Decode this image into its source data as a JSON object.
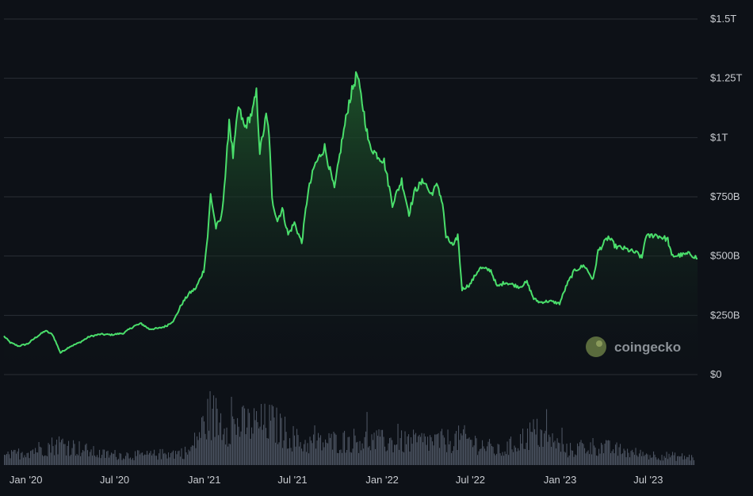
{
  "chart_data": {
    "type": "area",
    "title": "",
    "xlabel": "",
    "ylabel": "",
    "x_range": [
      "2019-11-17",
      "2023-10-10"
    ],
    "ylim": [
      0,
      1500
    ],
    "y_unit": "billion USD",
    "y_ticks": [
      {
        "value": 1500,
        "label": "$1.5T"
      },
      {
        "value": 1250,
        "label": "$1.25T"
      },
      {
        "value": 1000,
        "label": "$1T"
      },
      {
        "value": 750,
        "label": "$750B"
      },
      {
        "value": 500,
        "label": "$500B"
      },
      {
        "value": 250,
        "label": "$250B"
      },
      {
        "value": 0,
        "label": "$0"
      }
    ],
    "x_ticks": [
      {
        "date": "2020-01-01",
        "label": "Jan '20"
      },
      {
        "date": "2020-07-01",
        "label": "Jul '20"
      },
      {
        "date": "2021-01-01",
        "label": "Jan '21"
      },
      {
        "date": "2021-07-01",
        "label": "Jul '21"
      },
      {
        "date": "2022-01-01",
        "label": "Jan '22"
      },
      {
        "date": "2022-07-01",
        "label": "Jul '22"
      },
      {
        "date": "2023-01-01",
        "label": "Jan '23"
      },
      {
        "date": "2023-07-01",
        "label": "Jul '23"
      }
    ],
    "grid": true,
    "series": [
      {
        "color": "#4ade6b",
        "points": [
          [
            "2019-11-17",
            162
          ],
          [
            "2019-11-30",
            135
          ],
          [
            "2019-12-17",
            120
          ],
          [
            "2020-01-05",
            130
          ],
          [
            "2020-01-20",
            155
          ],
          [
            "2020-02-10",
            185
          ],
          [
            "2020-02-25",
            168
          ],
          [
            "2020-03-12",
            92
          ],
          [
            "2020-03-31",
            118
          ],
          [
            "2020-04-20",
            135
          ],
          [
            "2020-05-10",
            160
          ],
          [
            "2020-06-01",
            170
          ],
          [
            "2020-06-25",
            168
          ],
          [
            "2020-07-20",
            175
          ],
          [
            "2020-08-10",
            205
          ],
          [
            "2020-08-25",
            215
          ],
          [
            "2020-09-10",
            192
          ],
          [
            "2020-09-30",
            195
          ],
          [
            "2020-10-15",
            205
          ],
          [
            "2020-10-31",
            230
          ],
          [
            "2020-11-15",
            295
          ],
          [
            "2020-11-30",
            340
          ],
          [
            "2020-12-15",
            365
          ],
          [
            "2020-12-31",
            440
          ],
          [
            "2021-01-08",
            585
          ],
          [
            "2021-01-14",
            760
          ],
          [
            "2021-01-25",
            620
          ],
          [
            "2021-02-05",
            660
          ],
          [
            "2021-02-15",
            880
          ],
          [
            "2021-02-21",
            1080
          ],
          [
            "2021-03-01",
            920
          ],
          [
            "2021-03-12",
            1130
          ],
          [
            "2021-03-25",
            1040
          ],
          [
            "2021-04-10",
            1110
          ],
          [
            "2021-04-18",
            1190
          ],
          [
            "2021-04-25",
            940
          ],
          [
            "2021-05-08",
            1090
          ],
          [
            "2021-05-14",
            1020
          ],
          [
            "2021-05-20",
            740
          ],
          [
            "2021-05-31",
            650
          ],
          [
            "2021-06-10",
            700
          ],
          [
            "2021-06-22",
            590
          ],
          [
            "2021-07-05",
            640
          ],
          [
            "2021-07-20",
            555
          ],
          [
            "2021-08-01",
            760
          ],
          [
            "2021-08-15",
            880
          ],
          [
            "2021-09-05",
            960
          ],
          [
            "2021-09-25",
            780
          ],
          [
            "2021-10-10",
            980
          ],
          [
            "2021-10-25",
            1150
          ],
          [
            "2021-11-10",
            1270
          ],
          [
            "2021-11-25",
            1100
          ],
          [
            "2021-12-05",
            970
          ],
          [
            "2021-12-20",
            930
          ],
          [
            "2022-01-05",
            900
          ],
          [
            "2022-01-22",
            720
          ],
          [
            "2022-02-10",
            820
          ],
          [
            "2022-02-25",
            680
          ],
          [
            "2022-03-10",
            780
          ],
          [
            "2022-03-28",
            820
          ],
          [
            "2022-04-10",
            760
          ],
          [
            "2022-04-25",
            800
          ],
          [
            "2022-05-05",
            720
          ],
          [
            "2022-05-12",
            580
          ],
          [
            "2022-05-28",
            540
          ],
          [
            "2022-06-05",
            590
          ],
          [
            "2022-06-14",
            360
          ],
          [
            "2022-06-30",
            380
          ],
          [
            "2022-07-20",
            450
          ],
          [
            "2022-08-12",
            440
          ],
          [
            "2022-08-25",
            370
          ],
          [
            "2022-09-10",
            390
          ],
          [
            "2022-09-25",
            380
          ],
          [
            "2022-10-10",
            370
          ],
          [
            "2022-10-25",
            390
          ],
          [
            "2022-11-08",
            320
          ],
          [
            "2022-11-20",
            305
          ],
          [
            "2022-12-10",
            310
          ],
          [
            "2022-12-31",
            300
          ],
          [
            "2023-01-15",
            380
          ],
          [
            "2023-01-31",
            440
          ],
          [
            "2023-02-20",
            460
          ],
          [
            "2023-03-10",
            400
          ],
          [
            "2023-03-20",
            520
          ],
          [
            "2023-04-10",
            580
          ],
          [
            "2023-04-25",
            540
          ],
          [
            "2023-05-15",
            530
          ],
          [
            "2023-06-10",
            510
          ],
          [
            "2023-06-18",
            490
          ],
          [
            "2023-06-25",
            580
          ],
          [
            "2023-07-15",
            590
          ],
          [
            "2023-08-10",
            570
          ],
          [
            "2023-08-18",
            500
          ],
          [
            "2023-09-10",
            505
          ],
          [
            "2023-09-25",
            510
          ],
          [
            "2023-10-10",
            490
          ]
        ]
      }
    ],
    "volume_panel": {
      "visible": true,
      "shape": [
        [
          "2019-11-17",
          0.14
        ],
        [
          "2020-03-12",
          0.36
        ],
        [
          "2020-06-01",
          0.18
        ],
        [
          "2020-09-01",
          0.16
        ],
        [
          "2020-12-01",
          0.22
        ],
        [
          "2021-01-12",
          0.85
        ],
        [
          "2021-02-20",
          0.65
        ],
        [
          "2021-05-19",
          0.7
        ],
        [
          "2021-07-20",
          0.35
        ],
        [
          "2021-11-10",
          0.42
        ],
        [
          "2022-01-22",
          0.38
        ],
        [
          "2022-05-12",
          0.4
        ],
        [
          "2022-06-14",
          0.45
        ],
        [
          "2022-09-01",
          0.22
        ],
        [
          "2022-11-09",
          0.55
        ],
        [
          "2023-01-15",
          0.24
        ],
        [
          "2023-03-12",
          0.32
        ],
        [
          "2023-06-15",
          0.18
        ],
        [
          "2023-10-10",
          0.12
        ]
      ]
    }
  },
  "watermark": {
    "text": "coingecko"
  },
  "theme": {
    "background": "#0d1117",
    "grid": "#2a2f36",
    "line": "#4ade6b",
    "fill_top": "#1f5a2c",
    "volume": "#4a5260",
    "tick_text": "#c9ccd1"
  }
}
